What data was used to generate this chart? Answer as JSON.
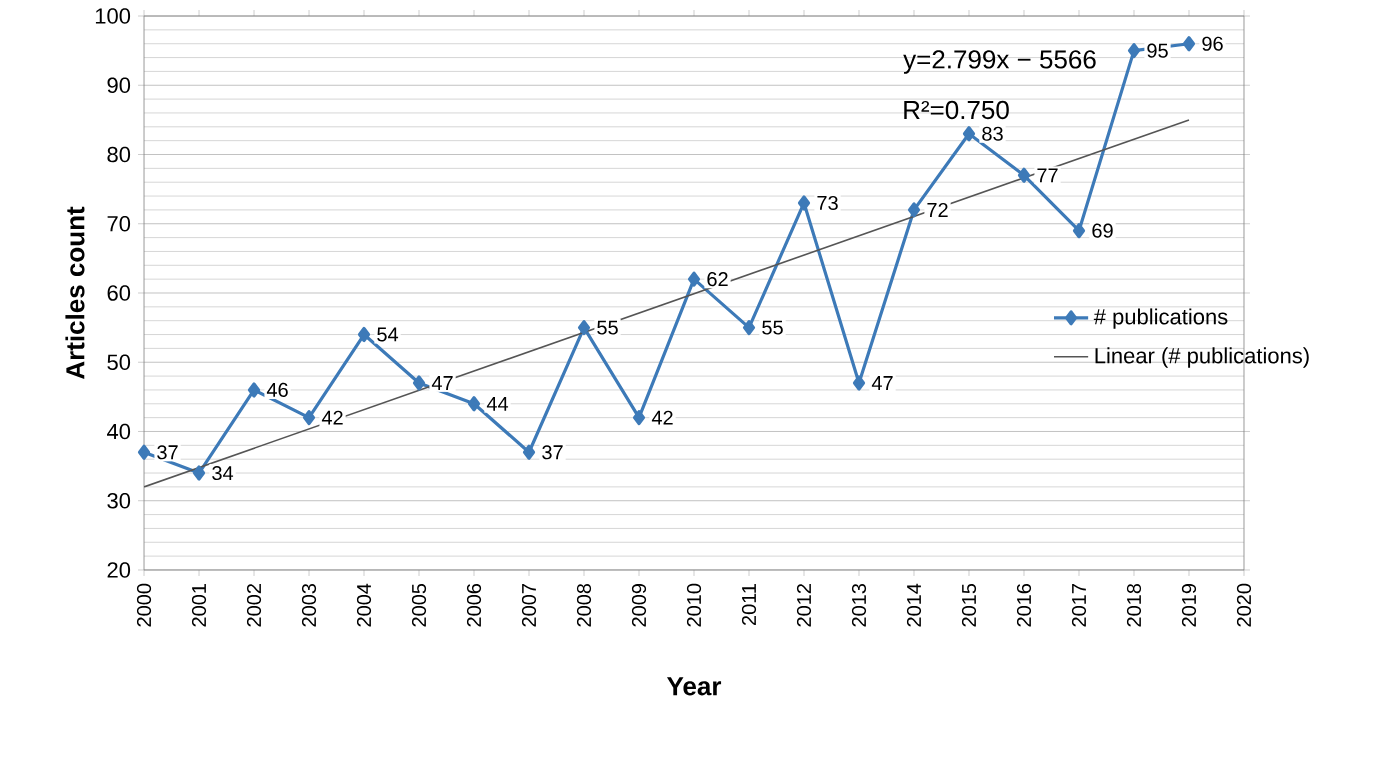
{
  "chart_data": {
    "type": "line",
    "xlabel": "Year",
    "ylabel": "Articles count",
    "x": [
      2000,
      2001,
      2002,
      2003,
      2004,
      2005,
      2006,
      2007,
      2008,
      2009,
      2010,
      2011,
      2012,
      2013,
      2014,
      2015,
      2016,
      2017,
      2018,
      2019
    ],
    "series": [
      {
        "name": "# publications",
        "color": "#3d7ab8",
        "marker": "diamond",
        "values": [
          37,
          34,
          46,
          42,
          54,
          47,
          44,
          37,
          55,
          42,
          62,
          55,
          73,
          47,
          72,
          83,
          77,
          69,
          95,
          96
        ],
        "value_labels": [
          "37",
          "34",
          "46",
          "42",
          "54",
          "47",
          "44",
          "37",
          "55",
          "42",
          "62",
          "55",
          "73",
          "47",
          "72",
          "83",
          "77",
          "69",
          "95",
          "96"
        ]
      },
      {
        "name": "Linear (# publications)",
        "type": "line",
        "color": "#555555",
        "marker": "none",
        "x": [
          2000,
          2019
        ],
        "values": [
          32,
          85
        ]
      }
    ],
    "annotations": [
      "y=2.799x − 5566",
      "R²=0.750"
    ],
    "xlim": [
      2000,
      2020
    ],
    "xticks": [
      2000,
      2001,
      2002,
      2003,
      2004,
      2005,
      2006,
      2007,
      2008,
      2009,
      2010,
      2011,
      2012,
      2013,
      2014,
      2015,
      2016,
      2017,
      2018,
      2019,
      2020
    ],
    "ylim": [
      20,
      100
    ],
    "yticks": [
      20,
      30,
      40,
      50,
      60,
      70,
      80,
      90,
      100
    ],
    "grid": "y",
    "legend": "right"
  }
}
